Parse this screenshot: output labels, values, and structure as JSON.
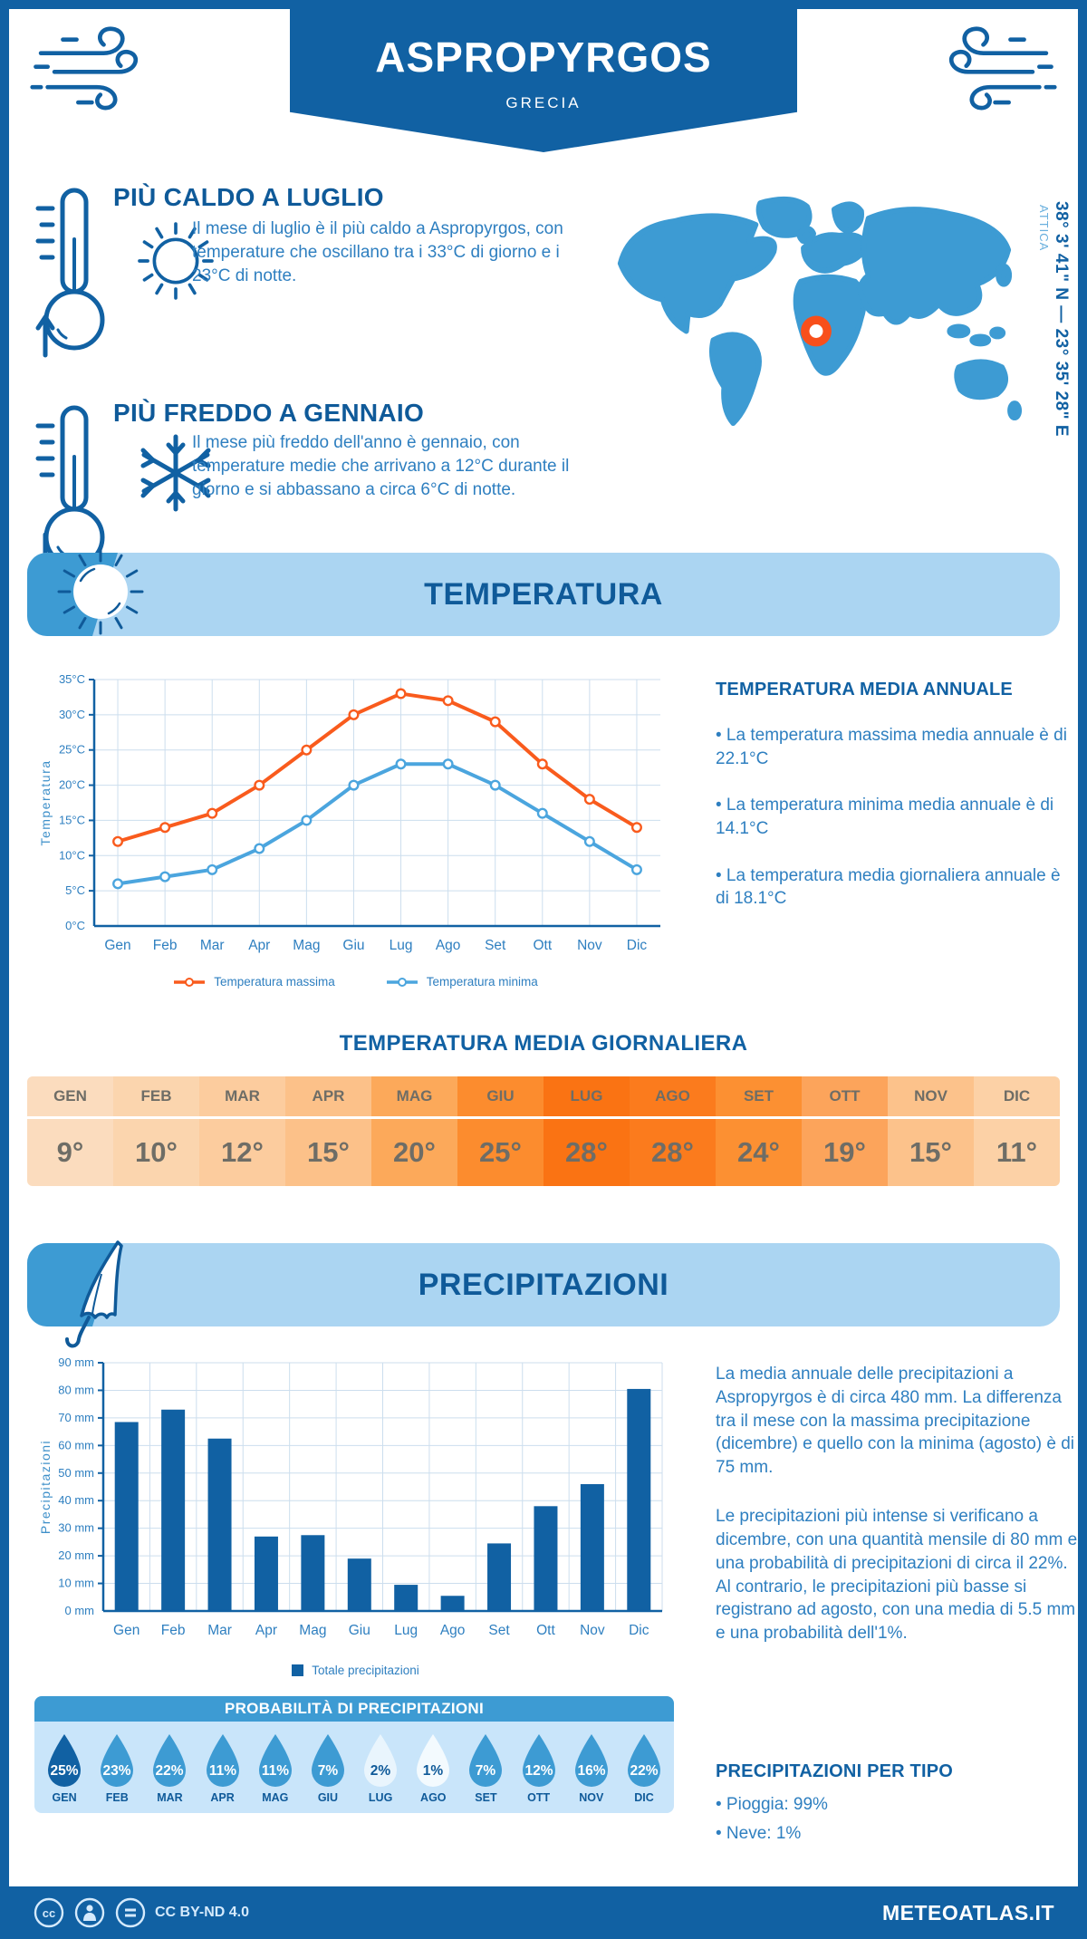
{
  "header": {
    "city": "ASPROPYRGOS",
    "country": "GRECIA"
  },
  "highlights": {
    "hot": {
      "title": "PIÙ CALDO A LUGLIO",
      "text": "Il mese di luglio è il più caldo a Aspropyrgos, con temperature che oscillano tra i 33°C di giorno e i 23°C di notte."
    },
    "cold": {
      "title": "PIÙ FREDDO A GENNAIO",
      "text": "Il mese più freddo dell'anno è gennaio, con temperature medie che arrivano a 12°C durante il giorno e si abbassano a circa 6°C di notte."
    }
  },
  "map": {
    "region": "ATTICA",
    "coordinates": "38° 3' 41\" N — 23° 35' 28\" E",
    "marker_color": "#f84f1b",
    "land_color": "#3d9bd3"
  },
  "sections": {
    "temperature": "TEMPERATURA",
    "precipitation": "PRECIPITAZIONI"
  },
  "temperature": {
    "annual_title": "TEMPERATURA MEDIA ANNUALE",
    "bullets": [
      "• La temperatura massima media annuale è di 22.1°C",
      "• La temperatura minima media annuale è di 14.1°C",
      "• La temperatura media giornaliera annuale è di 18.1°C"
    ],
    "daily_title": "TEMPERATURA MEDIA GIORNALIERA",
    "table": {
      "months": [
        "GEN",
        "FEB",
        "MAR",
        "APR",
        "MAG",
        "GIU",
        "LUG",
        "AGO",
        "SET",
        "OTT",
        "NOV",
        "DIC"
      ],
      "values": [
        "9°",
        "10°",
        "12°",
        "15°",
        "20°",
        "25°",
        "28°",
        "28°",
        "24°",
        "19°",
        "15°",
        "11°"
      ],
      "cell_colors": [
        "#fbdcbe",
        "#fbd5ae",
        "#fccc9e",
        "#fcc189",
        "#fca95a",
        "#fc8c2e",
        "#fa7313",
        "#fb7b1d",
        "#fc9032",
        "#fca45b",
        "#fcc28b",
        "#fcd1a6"
      ]
    }
  },
  "precipitation": {
    "paragraph1": "La media annuale delle precipitazioni a Aspropyrgos è di circa 480 mm. La differenza tra il mese con la massima precipitazione (dicembre) e quello con la minima (agosto) è di 75 mm.",
    "paragraph2": "Le precipitazioni più intense si verificano a dicembre, con una quantità mensile di 80 mm e una probabilità di precipitazioni di circa il 22%. Al contrario, le precipitazioni più basse si registrano ad agosto, con una media di 5.5 mm e una probabilità dell'1%.",
    "probability": {
      "title": "PROBABILITÀ DI PRECIPITAZIONI",
      "months": [
        "GEN",
        "FEB",
        "MAR",
        "APR",
        "MAG",
        "GIU",
        "LUG",
        "AGO",
        "SET",
        "OTT",
        "NOV",
        "DIC"
      ],
      "values": [
        "25%",
        "23%",
        "22%",
        "11%",
        "11%",
        "7%",
        "2%",
        "1%",
        "7%",
        "12%",
        "16%",
        "22%"
      ],
      "drop_colors": [
        "#1161a3",
        "#3d9bd3",
        "#3d9bd3",
        "#3d9bd3",
        "#3d9bd3",
        "#3d9bd3",
        "#e9f5fd",
        "#f3fafe",
        "#3d9bd3",
        "#3d9bd3",
        "#3d9bd3",
        "#3d9bd3"
      ],
      "text_colors": [
        "#ffffff",
        "#ffffff",
        "#ffffff",
        "#ffffff",
        "#ffffff",
        "#ffffff",
        "#0f5a99",
        "#0f5a99",
        "#ffffff",
        "#ffffff",
        "#ffffff",
        "#ffffff"
      ]
    },
    "type_title": "PRECIPITAZIONI PER TIPO",
    "types": [
      "• Pioggia: 99%",
      "• Neve: 1%"
    ]
  },
  "footer": {
    "license": "CC BY-ND 4.0",
    "site": "METEOATLAS.IT"
  },
  "icons": {
    "wind": "wind-icon",
    "thermometer_up": "thermometer-up-icon",
    "sun": "sun-icon",
    "thermometer_down": "thermometer-down-icon",
    "snowflake": "snowflake-icon",
    "umbrella": "umbrella-icon",
    "marker": "location-marker",
    "cc": "cc-icon",
    "person": "person-icon",
    "equals": "equals-icon"
  },
  "chart_data": [
    {
      "type": "line",
      "title": "Temperatura",
      "x": [
        "Gen",
        "Feb",
        "Mar",
        "Apr",
        "Mag",
        "Giu",
        "Lug",
        "Ago",
        "Set",
        "Ott",
        "Nov",
        "Dic"
      ],
      "series": [
        {
          "name": "Temperatura massima",
          "color": "#f95b1d",
          "values": [
            12,
            14,
            16,
            20,
            25,
            30,
            33,
            32,
            29,
            23,
            18,
            14
          ]
        },
        {
          "name": "Temperatura minima",
          "color": "#4ba5de",
          "values": [
            6,
            7,
            8,
            11,
            15,
            20,
            23,
            23,
            20,
            16,
            12,
            8
          ]
        }
      ],
      "ylabel": "Temperatura",
      "ylim": [
        0,
        35
      ],
      "ytick_step": 5,
      "ytick_suffix": "°C",
      "grid": true,
      "legend_position": "bottom"
    },
    {
      "type": "bar",
      "title": "Precipitazioni",
      "categories": [
        "Gen",
        "Feb",
        "Mar",
        "Apr",
        "Mag",
        "Giu",
        "Lug",
        "Ago",
        "Set",
        "Ott",
        "Nov",
        "Dic"
      ],
      "values": [
        68.5,
        73,
        62.5,
        27,
        27.5,
        19,
        9.5,
        5.5,
        24.5,
        38,
        46,
        80.5
      ],
      "legend": [
        "Totale precipitazioni"
      ],
      "bar_color": "#1161a3",
      "ylabel": "Precipitazioni",
      "ylim": [
        0,
        90
      ],
      "ytick_step": 10,
      "ytick_suffix": " mm",
      "grid": true,
      "legend_position": "bottom"
    }
  ]
}
